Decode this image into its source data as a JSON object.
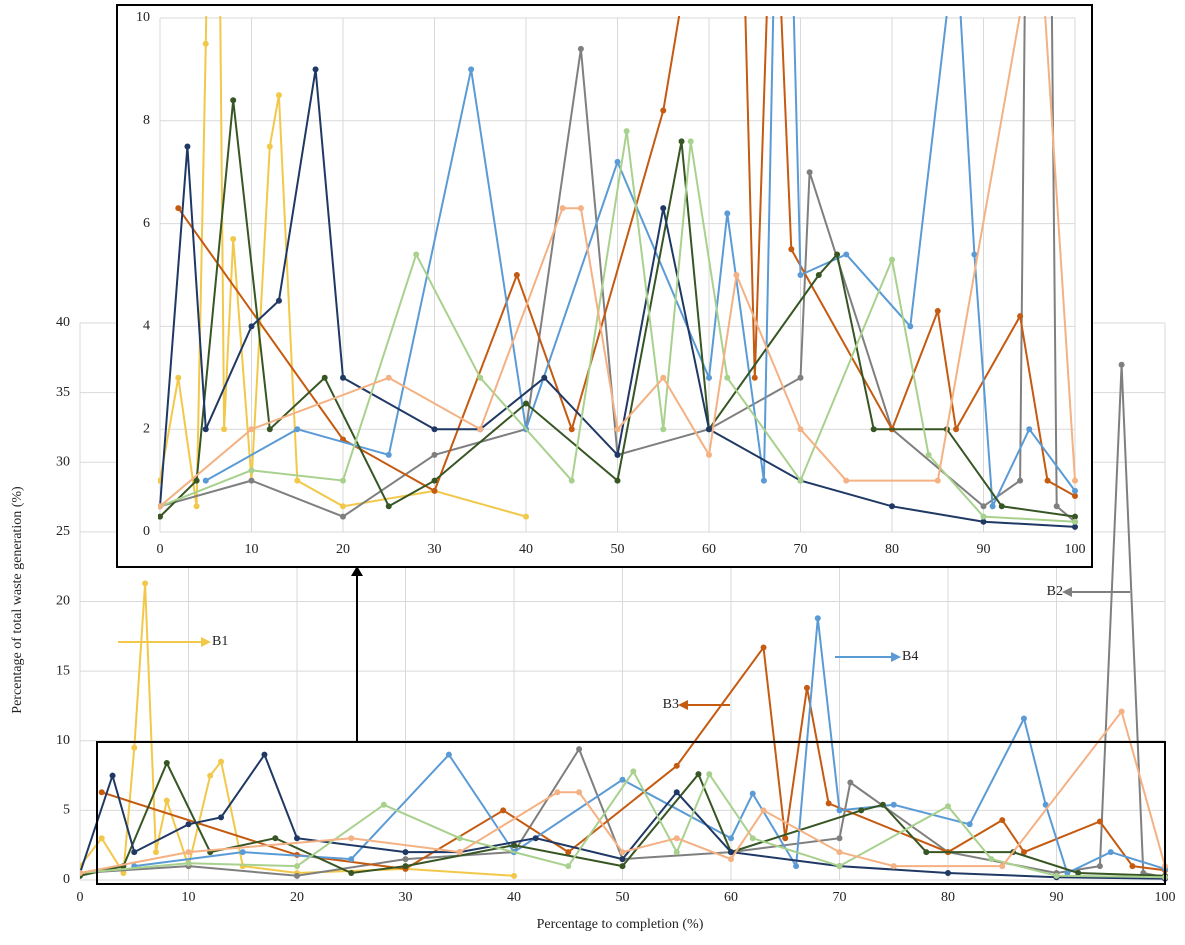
{
  "chart_data": {
    "type": "line",
    "x_label": "Percentage to completion  (%)",
    "y_label": "Percentage of total waste generation (%)",
    "xlim": [
      0,
      100
    ],
    "ylim": [
      0,
      40
    ],
    "xticks": [
      0,
      10,
      20,
      30,
      40,
      50,
      60,
      70,
      80,
      90,
      100
    ],
    "yticks": [
      0,
      5,
      10,
      15,
      20,
      25,
      30,
      35,
      40
    ],
    "grid": true,
    "inset": {
      "xlim": [
        0,
        100
      ],
      "ylim": [
        0,
        10
      ],
      "xticks": [
        0,
        10,
        20,
        30,
        40,
        50,
        60,
        70,
        80,
        90,
        100
      ],
      "yticks": [
        0,
        2,
        4,
        6,
        8,
        10
      ]
    },
    "annotations": [
      "B1",
      "B2",
      "B3",
      "B4"
    ],
    "series": [
      {
        "color": "#f2c84b",
        "x": [
          0,
          2,
          4,
          5,
          6,
          7,
          8,
          10,
          12,
          13,
          15,
          20,
          30,
          40
        ],
        "values": [
          1,
          3,
          0.5,
          9.5,
          21.3,
          2,
          5.7,
          1,
          7.5,
          8.5,
          1,
          0.5,
          0.8,
          0.3
        ]
      },
      {
        "color": "#7f7f7f",
        "x": [
          0,
          10,
          20,
          30,
          40,
          46,
          50,
          60,
          70,
          71,
          80,
          90,
          94,
          96,
          98,
          100
        ],
        "values": [
          0.5,
          1,
          0.3,
          1.5,
          2,
          9.4,
          1.5,
          2,
          3,
          7,
          2,
          0.5,
          1,
          37,
          0.5,
          0.2
        ]
      },
      {
        "color": "#c55a11",
        "x": [
          2,
          20,
          30,
          39,
          45,
          55,
          63,
          65,
          67,
          69,
          80,
          85,
          87,
          94,
          97,
          100
        ],
        "values": [
          6.3,
          1.8,
          0.8,
          5,
          2,
          8.2,
          16.7,
          3,
          13.8,
          5.5,
          2,
          4.3,
          2,
          4.2,
          1,
          0.7
        ]
      },
      {
        "color": "#5b9bd5",
        "x": [
          5,
          15,
          25,
          34,
          40,
          50,
          60,
          62,
          66,
          68,
          70,
          75,
          82,
          87,
          89,
          91,
          95,
          100
        ],
        "values": [
          1,
          2,
          1.5,
          9,
          2,
          7.2,
          3,
          6.2,
          1,
          18.8,
          5,
          5.4,
          4,
          11.6,
          5.4,
          0.5,
          2,
          0.8
        ]
      },
      {
        "color": "#375623",
        "x": [
          0,
          4,
          8,
          12,
          18,
          25,
          30,
          40,
          50,
          57,
          60,
          72,
          74,
          78,
          86,
          92,
          100
        ],
        "values": [
          0.3,
          1,
          8.4,
          2,
          3,
          0.5,
          1,
          2.5,
          1,
          7.6,
          2,
          5,
          5.4,
          2,
          2,
          0.5,
          0.3
        ]
      },
      {
        "color": "#1f3864",
        "x": [
          0,
          3,
          5,
          10,
          13,
          17,
          20,
          30,
          35,
          42,
          50,
          55,
          60,
          70,
          80,
          90,
          100
        ],
        "values": [
          0.5,
          7.5,
          2,
          4,
          4.5,
          9,
          3,
          2,
          2,
          3,
          1.5,
          6.3,
          2,
          1,
          0.5,
          0.2,
          0.1
        ]
      },
      {
        "color": "#a9d18e",
        "x": [
          0,
          10,
          20,
          28,
          35,
          45,
          51,
          55,
          58,
          62,
          70,
          80,
          84,
          90,
          100
        ],
        "values": [
          0.5,
          1.2,
          1,
          5.4,
          3,
          1,
          7.8,
          2,
          7.6,
          3,
          1,
          5.3,
          1.5,
          0.3,
          0.2
        ]
      },
      {
        "color": "#f4b183",
        "x": [
          0,
          10,
          25,
          35,
          44,
          46,
          50,
          55,
          60,
          63,
          70,
          75,
          85,
          96,
          100
        ],
        "values": [
          0.5,
          2,
          3,
          2,
          6.3,
          6.3,
          2,
          3,
          1.5,
          5,
          2,
          1,
          1,
          12.1,
          1
        ]
      }
    ]
  }
}
